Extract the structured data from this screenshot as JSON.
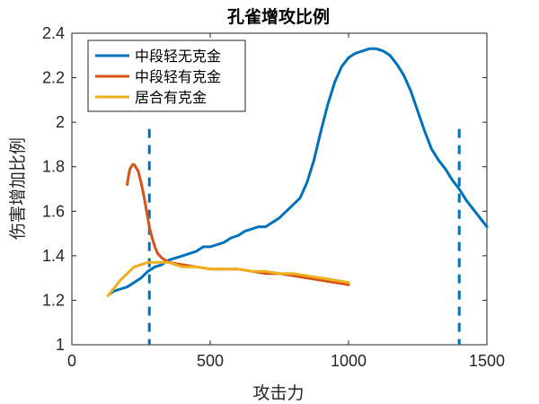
{
  "chart_data": {
    "type": "line",
    "title": "孔雀增攻比例",
    "xlabel": "攻击力",
    "ylabel": "伤害增加比例",
    "xlim": [
      0,
      1500
    ],
    "ylim": [
      1,
      2.4
    ],
    "xticks": [
      0,
      500,
      1000,
      1500
    ],
    "xtick_labels": [
      "0",
      "500",
      "1000",
      "1500"
    ],
    "yticks": [
      1,
      1.2,
      1.4,
      1.6,
      1.8,
      2,
      2.2,
      2.4
    ],
    "ytick_labels": [
      "1",
      "1.2",
      "1.4",
      "1.6",
      "1.8",
      "2",
      "2.2",
      "2.4"
    ],
    "grid": false,
    "legend_position": "top-left",
    "series": [
      {
        "name": "中段轻无克金",
        "color": "#0072BD",
        "x": [
          140,
          150,
          175,
          200,
          225,
          250,
          275,
          300,
          325,
          350,
          375,
          400,
          425,
          450,
          475,
          500,
          525,
          550,
          575,
          600,
          625,
          650,
          675,
          700,
          725,
          750,
          775,
          800,
          825,
          850,
          875,
          900,
          925,
          950,
          975,
          1000,
          1025,
          1050,
          1075,
          1100,
          1125,
          1150,
          1175,
          1200,
          1225,
          1250,
          1275,
          1300,
          1325,
          1350,
          1375,
          1400,
          1425,
          1450,
          1475,
          1500
        ],
        "y": [
          1.23,
          1.24,
          1.25,
          1.26,
          1.28,
          1.3,
          1.33,
          1.35,
          1.36,
          1.38,
          1.39,
          1.4,
          1.41,
          1.42,
          1.44,
          1.44,
          1.45,
          1.46,
          1.48,
          1.49,
          1.51,
          1.52,
          1.53,
          1.53,
          1.55,
          1.57,
          1.6,
          1.63,
          1.66,
          1.73,
          1.83,
          1.96,
          2.08,
          2.18,
          2.25,
          2.29,
          2.31,
          2.32,
          2.33,
          2.33,
          2.32,
          2.3,
          2.26,
          2.21,
          2.14,
          2.05,
          1.96,
          1.88,
          1.83,
          1.79,
          1.74,
          1.7,
          1.65,
          1.61,
          1.57,
          1.53
        ]
      },
      {
        "name": "中段轻有克金",
        "color": "#D95319",
        "x": [
          200,
          205,
          210,
          215,
          220,
          225,
          230,
          240,
          250,
          260,
          270,
          280,
          290,
          300,
          310,
          325,
          350,
          400,
          450,
          500,
          550,
          600,
          650,
          700,
          750,
          800,
          850,
          900,
          950,
          1000
        ],
        "y": [
          1.72,
          1.76,
          1.79,
          1.8,
          1.81,
          1.81,
          1.8,
          1.78,
          1.73,
          1.67,
          1.6,
          1.53,
          1.48,
          1.44,
          1.41,
          1.39,
          1.37,
          1.36,
          1.35,
          1.34,
          1.34,
          1.34,
          1.33,
          1.32,
          1.32,
          1.31,
          1.3,
          1.29,
          1.28,
          1.27
        ]
      },
      {
        "name": "居合有克金",
        "color": "#EDB120",
        "x": [
          130,
          150,
          175,
          200,
          225,
          250,
          275,
          300,
          325,
          350,
          375,
          400,
          450,
          500,
          550,
          600,
          650,
          700,
          750,
          800,
          850,
          900,
          950,
          1000
        ],
        "y": [
          1.22,
          1.25,
          1.29,
          1.32,
          1.35,
          1.36,
          1.37,
          1.37,
          1.37,
          1.37,
          1.36,
          1.35,
          1.35,
          1.34,
          1.34,
          1.34,
          1.33,
          1.33,
          1.32,
          1.32,
          1.31,
          1.3,
          1.29,
          1.28
        ]
      }
    ],
    "vlines": [
      {
        "x": 280,
        "color": "#0072BD",
        "style": "dashed"
      },
      {
        "x": 1400,
        "color": "#0072BD",
        "style": "dashed"
      }
    ]
  }
}
